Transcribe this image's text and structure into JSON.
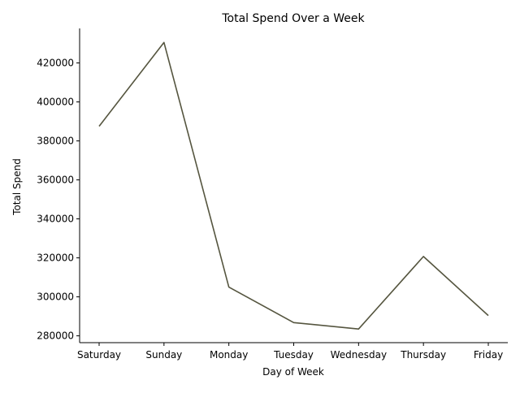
{
  "chart_data": {
    "type": "line",
    "title": "Total Spend Over a Week",
    "xlabel": "Day of Week",
    "ylabel": "Total Spend",
    "categories": [
      "Saturday",
      "Sunday",
      "Monday",
      "Tuesday",
      "Wednesday",
      "Thursday",
      "Friday"
    ],
    "series": [
      {
        "values": [
          387500,
          430500,
          305000,
          286800,
          283500,
          320700,
          290400
        ],
        "color": "#55553f"
      }
    ],
    "ylim": [
      276500,
      437700
    ],
    "yticks": [
      280000,
      300000,
      320000,
      340000,
      360000,
      380000,
      400000,
      420000
    ],
    "ytick_labels": [
      "280000",
      "300000",
      "320000",
      "340000",
      "360000",
      "380000",
      "400000",
      "420000"
    ],
    "grid": false,
    "legend": false,
    "spines": [
      "left",
      "bottom"
    ]
  }
}
